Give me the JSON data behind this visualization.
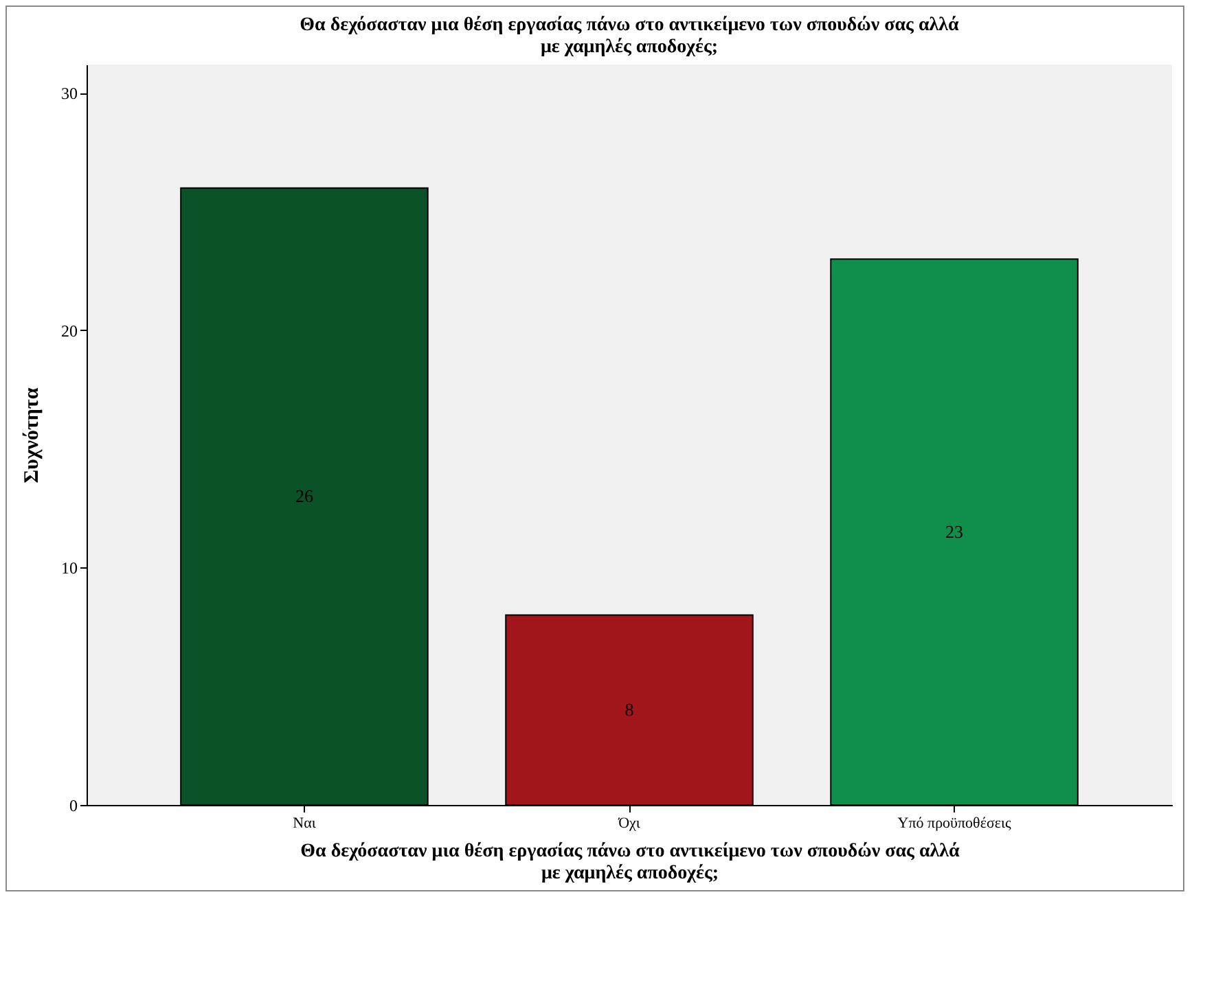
{
  "chart_data": {
    "type": "bar",
    "title": "Θα δεχόσασταν μια θέση εργασίας πάνω στο αντικείμενο των σπουδών σας αλλά με χαμηλές αποδοχές;",
    "xlabel": "Θα δεχόσασταν μια θέση εργασίας πάνω στο αντικείμενο των σπουδών σας αλλά με χαμηλές αποδοχές;",
    "ylabel": "Συχνότητα",
    "categories": [
      "Ναι",
      "Όχι",
      "Υπό προϋποθέσεις"
    ],
    "values": [
      26,
      8,
      23
    ],
    "colors": [
      "#0b5229",
      "#a0161a",
      "#0f8f4a"
    ],
    "ylim": [
      0,
      31.2
    ],
    "yticks": [
      0,
      10,
      20,
      30
    ],
    "grid": false,
    "data_labels": true
  }
}
